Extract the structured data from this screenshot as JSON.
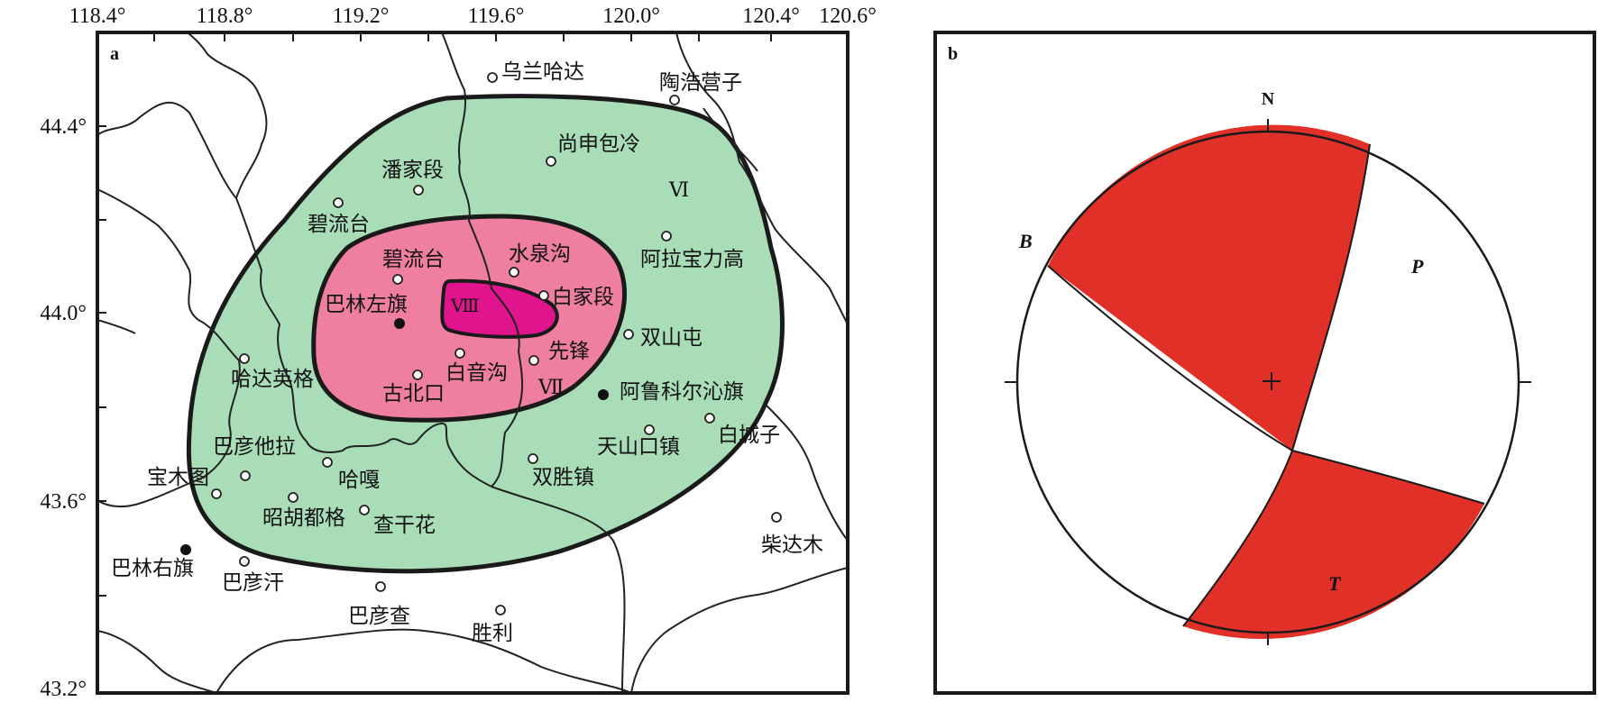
{
  "panel_a": {
    "label": "a",
    "lon_ticks": [
      "118.4°",
      "118.8°",
      "119.2°",
      "119.6°",
      "120.0°",
      "120.4°",
      "120.6°"
    ],
    "lat_ticks": [
      "44.4°",
      "44.0°",
      "43.6°",
      "43.2°"
    ],
    "intensity_labels": {
      "vi": "Ⅵ",
      "vii": "Ⅶ",
      "viii": "Ⅷ"
    },
    "colors": {
      "vi": "#a8ddb8",
      "vii": "#ee7fa0",
      "viii": "#e0148c"
    },
    "places": [
      {
        "name": "乌兰哈达"
      },
      {
        "name": "陶浩营子"
      },
      {
        "name": "尚申包冷"
      },
      {
        "name": "潘家段"
      },
      {
        "name": "碧流台"
      },
      {
        "name": "阿拉宝力高"
      },
      {
        "name": "碧流台"
      },
      {
        "name": "水泉沟"
      },
      {
        "name": "白家段"
      },
      {
        "name": "巴林左旗"
      },
      {
        "name": "双山屯"
      },
      {
        "name": "先锋"
      },
      {
        "name": "白音沟"
      },
      {
        "name": "哈达英格"
      },
      {
        "name": "古北口"
      },
      {
        "name": "阿鲁科尔沁旗"
      },
      {
        "name": "白城子"
      },
      {
        "name": "天山口镇"
      },
      {
        "name": "巴彦他拉"
      },
      {
        "name": "宝木图"
      },
      {
        "name": "哈嘎"
      },
      {
        "name": "双胜镇"
      },
      {
        "name": "昭胡都格"
      },
      {
        "name": "查干花"
      },
      {
        "name": "柴达木"
      },
      {
        "name": "巴林右旗"
      },
      {
        "name": "巴彦汗"
      },
      {
        "name": "巴彦查"
      },
      {
        "name": "胜利"
      }
    ]
  },
  "panel_b": {
    "label": "b",
    "north": "N",
    "axes": {
      "b": "B",
      "p": "P",
      "t": "T"
    },
    "fill_color": "#e03028"
  }
}
